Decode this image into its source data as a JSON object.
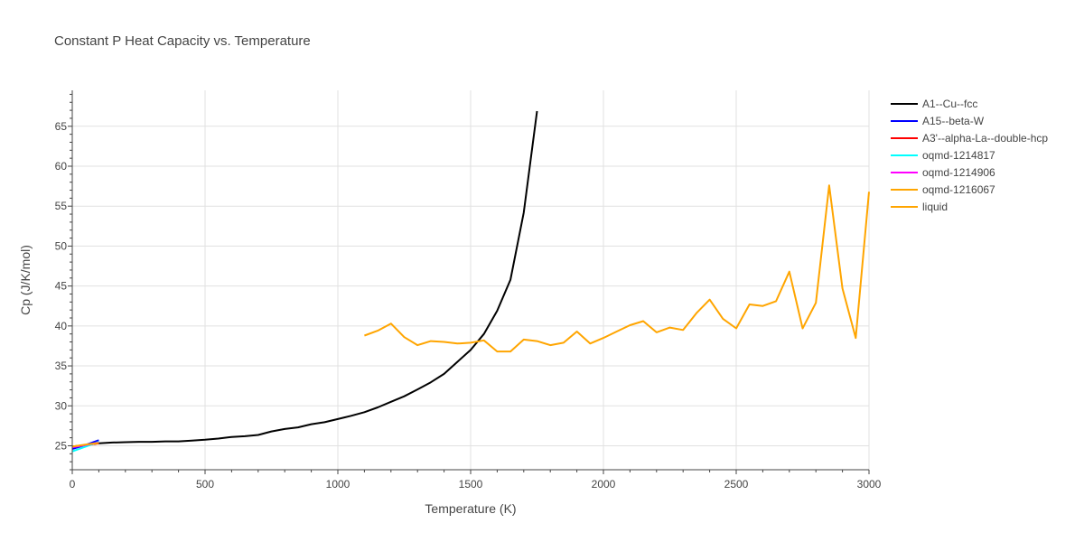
{
  "chart_data": {
    "type": "line",
    "title": "Constant P Heat Capacity vs. Temperature",
    "xlabel": "Temperature (K)",
    "ylabel": "Cp (J/K/mol)",
    "xlim": [
      0,
      3000
    ],
    "ylim": [
      22,
      69.5
    ],
    "x_ticks": [
      0,
      500,
      1000,
      1500,
      2000,
      2500,
      3000
    ],
    "y_ticks": [
      25,
      30,
      35,
      40,
      45,
      50,
      55,
      60,
      65
    ],
    "grid": true,
    "legend_position": "right",
    "series": [
      {
        "name": "A1--Cu--fcc",
        "color": "#000000",
        "x": [
          0,
          50,
          100,
          150,
          200,
          250,
          300,
          350,
          400,
          450,
          500,
          550,
          600,
          650,
          700,
          750,
          800,
          850,
          900,
          950,
          1000,
          1050,
          1100,
          1150,
          1200,
          1250,
          1300,
          1350,
          1400,
          1450,
          1500,
          1550,
          1600,
          1650,
          1700,
          1750
        ],
        "y": [
          24.9,
          25.1,
          25.3,
          25.4,
          25.45,
          25.5,
          25.5,
          25.55,
          25.55,
          25.65,
          25.75,
          25.9,
          26.1,
          26.2,
          26.35,
          26.8,
          27.1,
          27.3,
          27.7,
          27.95,
          28.35,
          28.75,
          29.2,
          29.8,
          30.5,
          31.2,
          32.05,
          32.95,
          34.0,
          35.5,
          37.0,
          39.0,
          41.9,
          45.8,
          54.2,
          66.9
        ]
      },
      {
        "name": "A15--beta-W",
        "color": "#0000ff",
        "x": [
          0,
          50,
          100
        ],
        "y": [
          24.6,
          25.1,
          25.7
        ]
      },
      {
        "name": "A3'--alpha-La--double-hcp",
        "color": "#ff0000",
        "x": [
          0,
          50,
          100
        ],
        "y": [
          24.9,
          25.1,
          25.3
        ]
      },
      {
        "name": "oqmd-1214817",
        "color": "#00ffff",
        "x": [
          0,
          50,
          100
        ],
        "y": [
          24.3,
          24.9,
          25.5
        ]
      },
      {
        "name": "oqmd-1214906",
        "color": "#ff00ff",
        "x": [
          0,
          50,
          100
        ],
        "y": [
          24.8,
          25.1,
          25.4
        ]
      },
      {
        "name": "oqmd-1216067",
        "color": "#ffa500",
        "x": [
          0,
          50,
          100
        ],
        "y": [
          24.9,
          25.15,
          25.35
        ]
      },
      {
        "name": "liquid",
        "color": "#ffa500",
        "x": [
          1100,
          1150,
          1200,
          1250,
          1300,
          1350,
          1400,
          1450,
          1500,
          1550,
          1600,
          1650,
          1700,
          1750,
          1800,
          1850,
          1900,
          1950,
          2000,
          2050,
          2100,
          2150,
          2200,
          2250,
          2300,
          2350,
          2400,
          2450,
          2500,
          2550,
          2600,
          2650,
          2700,
          2750,
          2800,
          2850,
          2900,
          2950,
          3000
        ],
        "y": [
          38.8,
          39.4,
          40.3,
          38.6,
          37.6,
          38.1,
          38.0,
          37.8,
          37.9,
          38.2,
          36.8,
          36.8,
          38.3,
          38.1,
          37.6,
          37.9,
          39.3,
          37.8,
          38.5,
          39.3,
          40.1,
          40.6,
          39.2,
          39.8,
          39.5,
          41.6,
          43.3,
          40.9,
          39.7,
          42.7,
          42.5,
          43.1,
          46.8,
          39.7,
          42.9,
          57.6,
          44.7,
          38.5,
          56.8
        ]
      }
    ]
  }
}
